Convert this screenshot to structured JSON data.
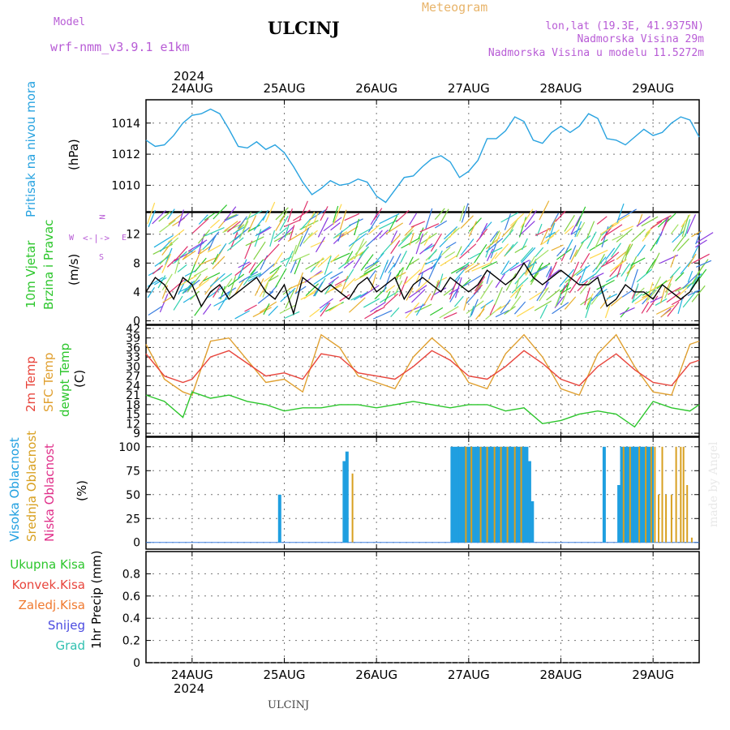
{
  "header": {
    "model_label": "Model",
    "model_name": "wrf-nmm_v3.9.1 e1km",
    "title": "ULCINJ",
    "meteogram": "Meteogram",
    "lonlat": "lon,lat (19.3E, 41.9375N)",
    "altitude": "Nadmorska Visina 29m",
    "altitude_model": "Nadmorska Visina u modelu 11.5272m",
    "footer_station": "ULCINJ",
    "watermark": "made by Angel",
    "year_top": "2024",
    "year_bottom": "2024"
  },
  "colors": {
    "pressure": "#29a3e0",
    "wind_black": "#000000",
    "temp2m": "#e8453c",
    "sfc": "#e0a030",
    "dew": "#2cc62c",
    "high_cloud": "#1f9fe0",
    "mid_cloud": "#d8a020",
    "low_cloud": "#e0308a"
  },
  "panel_labels": {
    "pressure": [
      "Pritisak na nivou mora",
      "(hPa)"
    ],
    "wind": [
      "10m Vjetar",
      "Brzina i Pravac",
      "(m/s)"
    ],
    "compass": [
      "N",
      "W",
      "E",
      "S"
    ],
    "temp": [
      "2m Temp",
      "SFC Temp",
      "dewpt Temp",
      "(C)"
    ],
    "cloud": [
      "Visoka Oblacnost",
      "Srednja Oblacnost",
      "Niska Oblacnost",
      "(%)"
    ],
    "precip_legend": [
      "Ukupna Kisa",
      "Konvek.Kisa",
      "Zaledj.Kisa",
      "Snijeg",
      "Grad"
    ],
    "precip_axis": "1hr Precip (mm)"
  },
  "chart_data": [
    {
      "type": "line",
      "title": "Pritisak na nivou mora",
      "ylabel": "(hPa)",
      "x_range_days": [
        23.5,
        29.5
      ],
      "x_ticks": [
        "24AUG",
        "25AUG",
        "26AUG",
        "27AUG",
        "28AUG",
        "29AUG"
      ],
      "ylim": [
        1008.3,
        1015.5
      ],
      "y_ticks": [
        1010,
        1012,
        1014
      ],
      "grid": true,
      "series": [
        {
          "name": "Pritisak na nivou mora",
          "x": [
            23.5,
            23.6,
            23.7,
            23.8,
            23.9,
            24.0,
            24.1,
            24.2,
            24.3,
            24.4,
            24.5,
            24.6,
            24.7,
            24.8,
            24.9,
            25.0,
            25.1,
            25.2,
            25.3,
            25.4,
            25.5,
            25.6,
            25.7,
            25.8,
            25.9,
            26.0,
            26.1,
            26.2,
            26.3,
            26.4,
            26.5,
            26.6,
            26.7,
            26.8,
            26.9,
            27.0,
            27.1,
            27.2,
            27.3,
            27.4,
            27.5,
            27.6,
            27.7,
            27.8,
            27.9,
            28.0,
            28.1,
            28.2,
            28.3,
            28.4,
            28.5,
            28.6,
            28.7,
            28.8,
            28.9,
            29.0,
            29.1,
            29.2,
            29.3,
            29.4,
            29.5
          ],
          "values": [
            1012.9,
            1012.5,
            1012.6,
            1013.2,
            1014.0,
            1014.5,
            1014.6,
            1014.9,
            1014.6,
            1013.6,
            1012.5,
            1012.4,
            1012.8,
            1012.3,
            1012.6,
            1012.1,
            1011.2,
            1010.2,
            1009.4,
            1009.8,
            1010.3,
            1010.0,
            1010.1,
            1010.4,
            1010.2,
            1009.3,
            1008.9,
            1009.7,
            1010.5,
            1010.6,
            1011.2,
            1011.7,
            1011.9,
            1011.5,
            1010.5,
            1010.9,
            1011.6,
            1013.0,
            1013.0,
            1013.5,
            1014.4,
            1014.1,
            1012.9,
            1012.7,
            1013.4,
            1013.8,
            1013.4,
            1013.8,
            1014.6,
            1014.3,
            1013.0,
            1012.9,
            1012.6,
            1013.1,
            1013.6,
            1013.2,
            1013.4,
            1014.0,
            1014.4,
            1014.2,
            1013.1
          ]
        }
      ]
    },
    {
      "type": "line",
      "title": "10m Vjetar Brzina i Pravac",
      "ylabel": "(m/s)",
      "ylim": [
        -0.5,
        15
      ],
      "y_ticks": [
        0,
        4,
        8,
        12
      ],
      "grid": true,
      "series": [
        {
          "name": "Brzina",
          "x": [
            23.5,
            23.6,
            23.7,
            23.8,
            23.9,
            24.0,
            24.1,
            24.2,
            24.3,
            24.4,
            24.5,
            24.6,
            24.7,
            24.8,
            24.9,
            25.0,
            25.1,
            25.2,
            25.3,
            25.4,
            25.5,
            25.6,
            25.7,
            25.8,
            25.9,
            26.0,
            26.1,
            26.2,
            26.3,
            26.4,
            26.5,
            26.6,
            26.7,
            26.8,
            26.9,
            27.0,
            27.1,
            27.2,
            27.3,
            27.4,
            27.5,
            27.6,
            27.7,
            27.8,
            27.9,
            28.0,
            28.1,
            28.2,
            28.3,
            28.4,
            28.5,
            28.6,
            28.7,
            28.8,
            28.9,
            29.0,
            29.1,
            29.2,
            29.3,
            29.4,
            29.5
          ],
          "values": [
            4,
            6,
            5,
            3,
            6,
            5,
            2,
            4,
            5,
            3,
            4,
            5,
            6,
            4,
            3,
            5,
            1,
            6,
            5,
            4,
            5,
            4,
            3,
            5,
            6,
            4,
            5,
            6,
            3,
            5,
            6,
            5,
            4,
            6,
            5,
            4,
            5,
            7,
            6,
            5,
            6,
            8,
            6,
            5,
            6,
            7,
            6,
            5,
            5,
            6,
            2,
            3,
            5,
            4,
            4,
            3,
            5,
            4,
            3,
            4,
            6
          ]
        }
      ]
    },
    {
      "type": "line",
      "title": "2m Temp / SFC Temp / dewpt Temp",
      "ylabel": "(C)",
      "ylim": [
        8,
        43
      ],
      "y_ticks": [
        9,
        12,
        15,
        18,
        21,
        24,
        27,
        30,
        33,
        36,
        39,
        42
      ],
      "grid": true,
      "series": [
        {
          "name": "2m Temp",
          "x": [
            23.5,
            23.7,
            23.9,
            24.0,
            24.2,
            24.4,
            24.6,
            24.8,
            25.0,
            25.2,
            25.4,
            25.6,
            25.8,
            26.0,
            26.2,
            26.4,
            26.6,
            26.8,
            27.0,
            27.2,
            27.4,
            27.6,
            27.8,
            28.0,
            28.2,
            28.4,
            28.6,
            28.8,
            29.0,
            29.2,
            29.4,
            29.5
          ],
          "values": [
            34,
            27,
            25,
            26,
            33,
            35,
            31,
            27,
            28,
            26,
            34,
            33,
            28,
            27,
            26,
            30,
            35,
            32,
            27,
            26,
            30,
            35,
            31,
            26,
            24,
            30,
            34,
            29,
            25,
            24,
            31,
            32
          ]
        },
        {
          "name": "SFC Temp",
          "x": [
            23.5,
            23.7,
            23.9,
            24.0,
            24.2,
            24.4,
            24.6,
            24.8,
            25.0,
            25.2,
            25.4,
            25.6,
            25.8,
            26.0,
            26.2,
            26.4,
            26.6,
            26.8,
            27.0,
            27.2,
            27.4,
            27.6,
            27.8,
            28.0,
            28.2,
            28.4,
            28.6,
            28.8,
            29.0,
            29.2,
            29.4,
            29.5
          ],
          "values": [
            37,
            26,
            22,
            21,
            38,
            39,
            32,
            25,
            26,
            22,
            40,
            36,
            27,
            25,
            23,
            33,
            39,
            34,
            25,
            23,
            34,
            40,
            33,
            23,
            21,
            34,
            40,
            30,
            22,
            21,
            37,
            38
          ]
        },
        {
          "name": "dewpt Temp",
          "x": [
            23.5,
            23.7,
            23.9,
            24.0,
            24.2,
            24.4,
            24.6,
            24.8,
            25.0,
            25.2,
            25.4,
            25.6,
            25.8,
            26.0,
            26.2,
            26.4,
            26.6,
            26.8,
            27.0,
            27.2,
            27.4,
            27.6,
            27.8,
            28.0,
            28.2,
            28.4,
            28.6,
            28.8,
            29.0,
            29.2,
            29.4,
            29.5
          ],
          "values": [
            21,
            19,
            14,
            22,
            20,
            21,
            19,
            18,
            16,
            17,
            17,
            18,
            18,
            17,
            18,
            19,
            18,
            17,
            18,
            18,
            16,
            17,
            12,
            13,
            15,
            16,
            15,
            11,
            19,
            17,
            16,
            18
          ]
        }
      ]
    },
    {
      "type": "bar",
      "title": "Visoka / Srednja / Niska Oblacnost",
      "ylabel": "(%)",
      "ylim": [
        -7,
        110
      ],
      "y_ticks": [
        0,
        25,
        50,
        75,
        100
      ],
      "grid": true,
      "series": [
        {
          "name": "Visoka Oblacnost",
          "x": [
            24.95,
            25.65,
            25.68,
            26.82,
            26.85,
            26.88,
            26.91,
            26.94,
            26.97,
            27.0,
            27.03,
            27.06,
            27.09,
            27.12,
            27.15,
            27.18,
            27.21,
            27.24,
            27.27,
            27.3,
            27.33,
            27.36,
            27.39,
            27.42,
            27.45,
            27.48,
            27.51,
            27.54,
            27.57,
            27.6,
            27.63,
            27.66,
            27.69,
            28.47,
            28.63,
            28.66,
            28.69,
            28.72,
            28.75,
            28.78,
            28.81,
            28.84,
            28.87,
            28.9,
            28.93,
            28.96,
            28.99
          ],
          "values": [
            50,
            85,
            95,
            100,
            100,
            100,
            100,
            100,
            100,
            100,
            100,
            100,
            100,
            100,
            100,
            100,
            100,
            100,
            100,
            100,
            100,
            100,
            100,
            100,
            100,
            100,
            100,
            100,
            100,
            100,
            100,
            85,
            43,
            100,
            60,
            100,
            100,
            100,
            100,
            100,
            100,
            100,
            100,
            100,
            100,
            100,
            100
          ]
        },
        {
          "name": "Srednja Oblacnost",
          "x": [
            25.74,
            26.97,
            27.03,
            27.13,
            27.2,
            27.28,
            27.35,
            27.42,
            27.5,
            27.57,
            28.68,
            28.75,
            28.85,
            28.92,
            28.98,
            29.02,
            29.06,
            29.1,
            29.14,
            29.2,
            29.25,
            29.3,
            29.33,
            29.37,
            29.42
          ],
          "values": [
            72,
            100,
            100,
            100,
            100,
            100,
            100,
            100,
            100,
            100,
            100,
            100,
            100,
            100,
            100,
            100,
            50,
            100,
            50,
            50,
            100,
            100,
            100,
            60,
            5
          ]
        },
        {
          "name": "Niska Oblacnost",
          "x": [],
          "values": []
        }
      ]
    },
    {
      "type": "bar",
      "title": "1hr Precip",
      "ylabel": "1hr Precip (mm)",
      "ylim": [
        0,
        1.0
      ],
      "y_ticks": [
        0,
        0.2,
        0.4,
        0.6,
        0.8
      ],
      "grid": true,
      "series": [
        {
          "name": "Ukupna Kisa",
          "x": [],
          "values": []
        }
      ]
    }
  ]
}
